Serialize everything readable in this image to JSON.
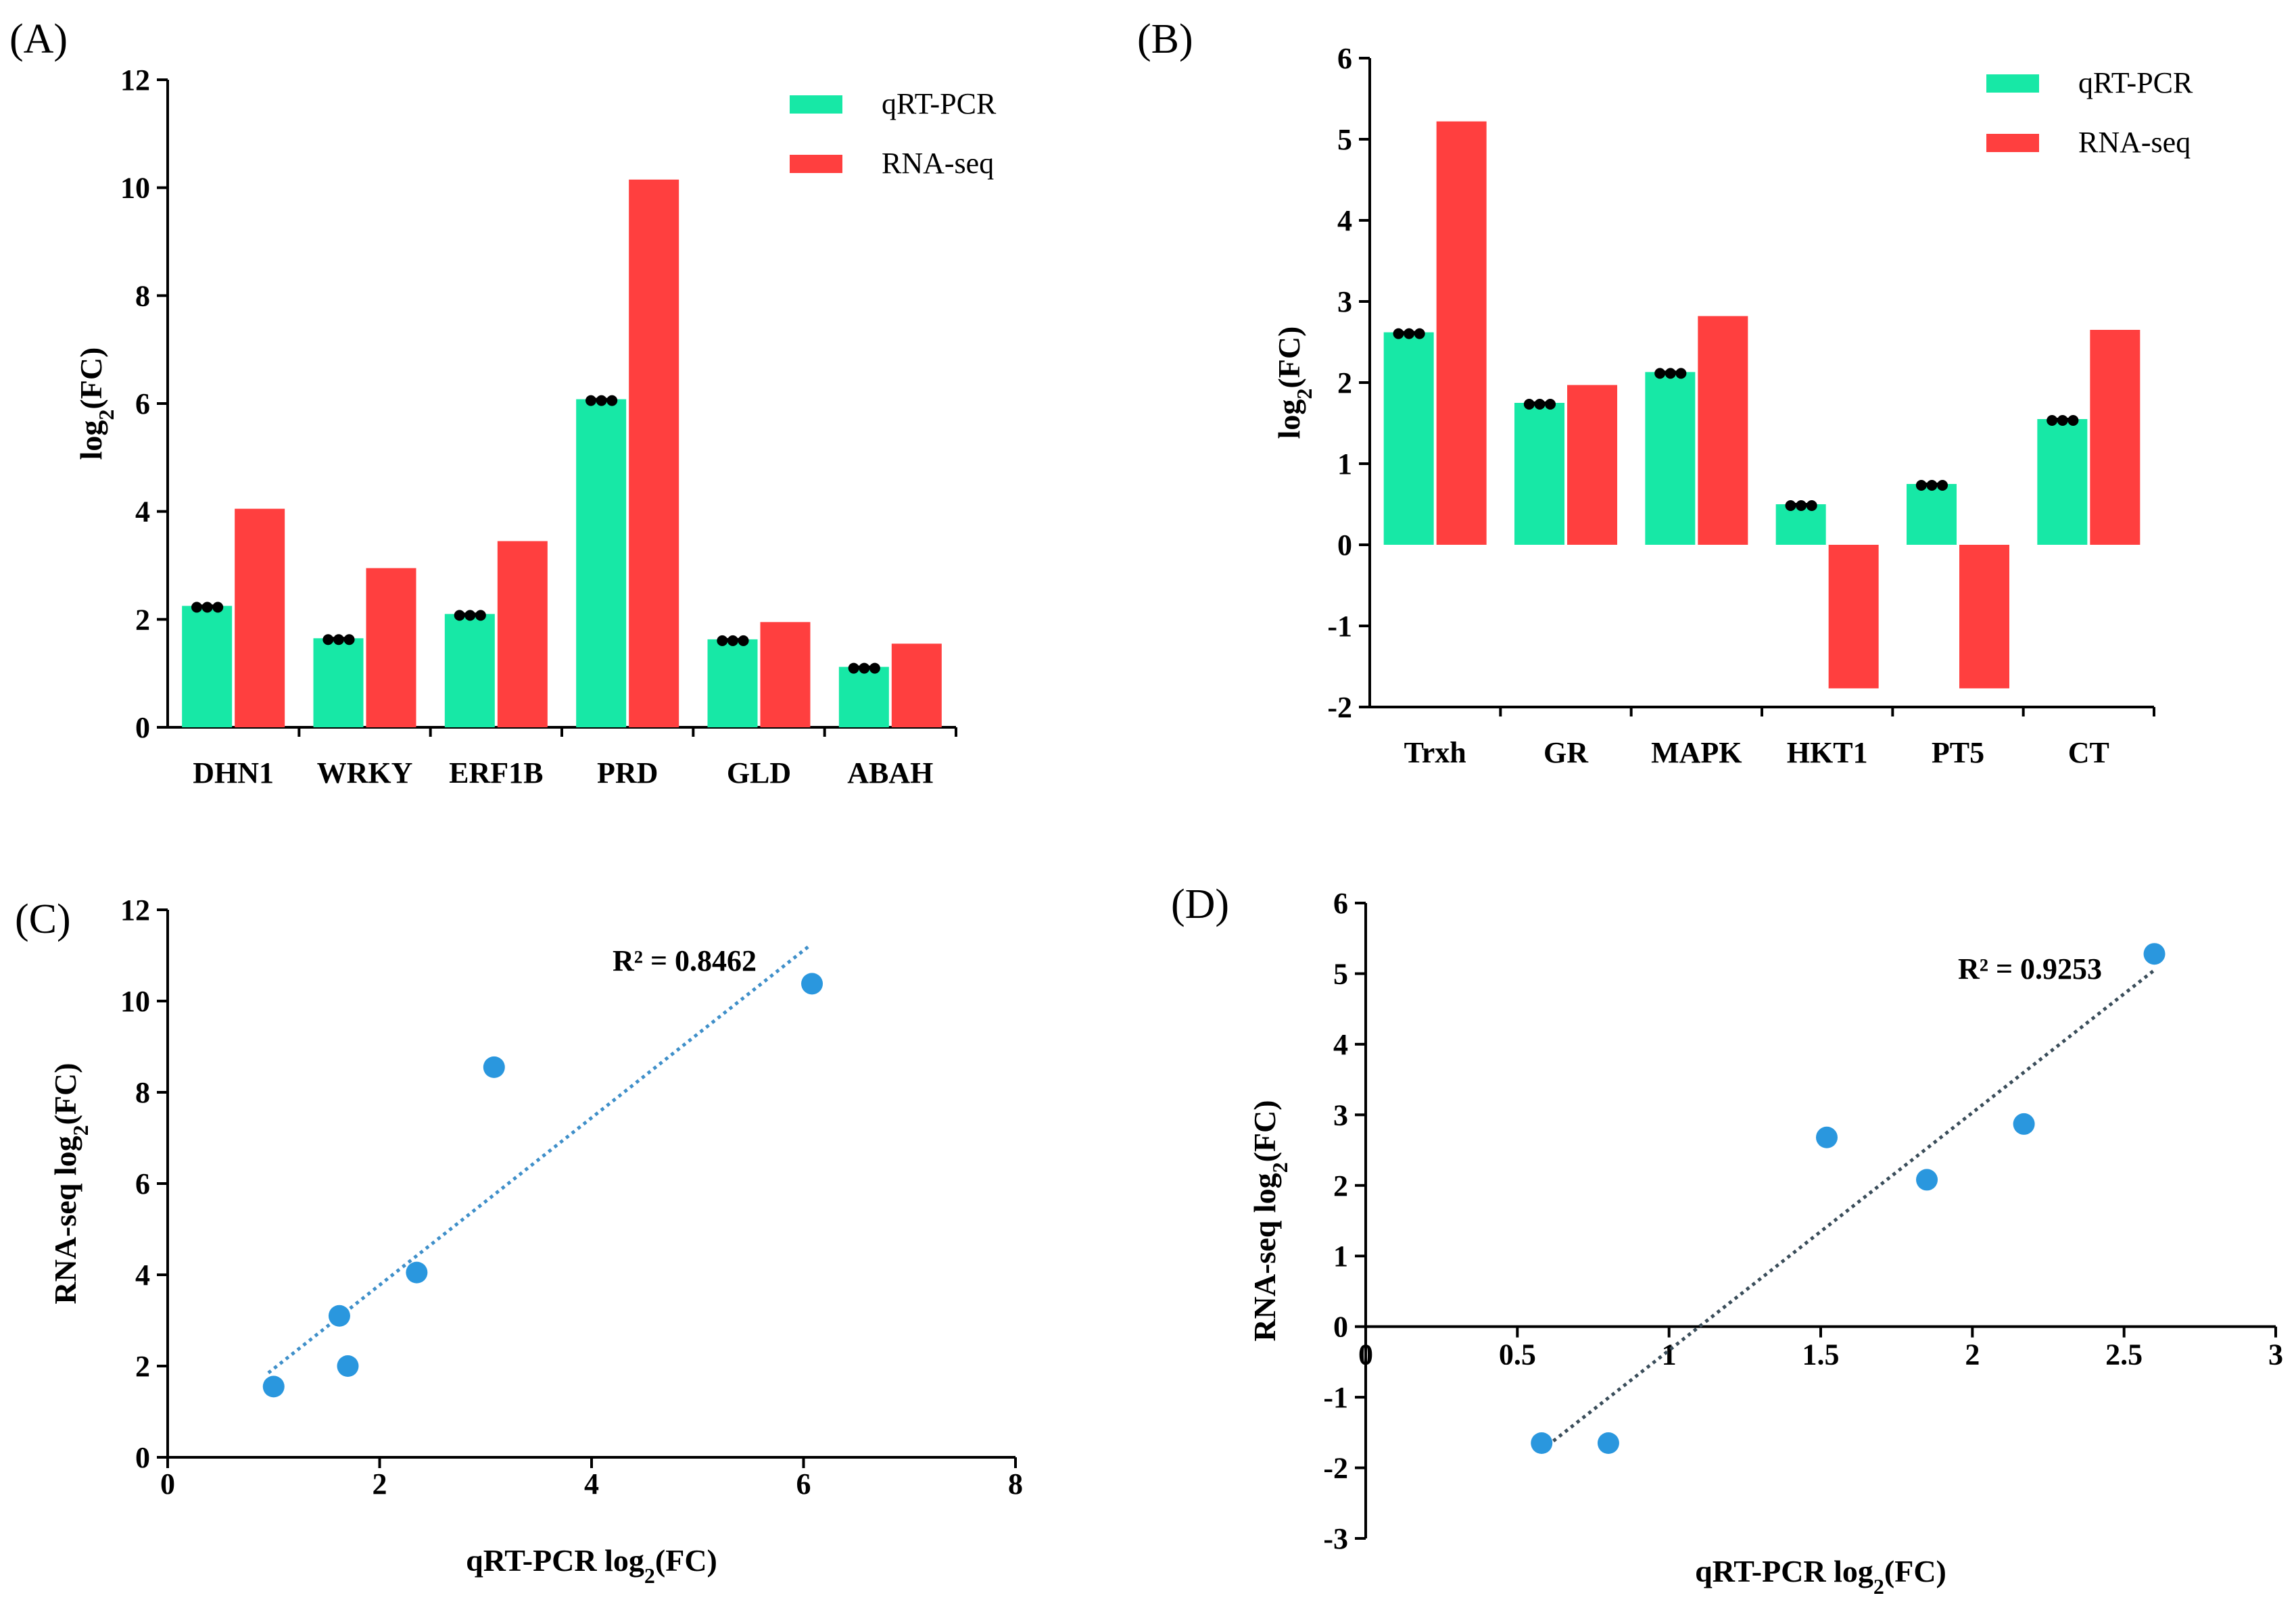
{
  "colors": {
    "qpcr": "#17e8a6",
    "rnaseq": "#ff3f3f",
    "scatter": "#2a97de",
    "trend_c": "#3f8fc9",
    "trend_d": "#3a4d5a",
    "axis": "#000000"
  },
  "chart_data": [
    {
      "id": "A",
      "panel_label": "(A)",
      "type": "bar",
      "ylabel_main": "log",
      "ylabel_sub": "2",
      "ylabel_tail": "(FC)",
      "ylim": [
        0,
        12
      ],
      "yticks": [
        0,
        2,
        4,
        6,
        8,
        10,
        12
      ],
      "categories": [
        "DHN1",
        "WRKY",
        "ERF1B",
        "PRD",
        "GLD",
        "ABAH"
      ],
      "series": [
        {
          "name": "qRT-PCR",
          "values": [
            2.25,
            1.65,
            2.1,
            6.08,
            1.63,
            1.12
          ]
        },
        {
          "name": "RNA-seq",
          "values": [
            4.05,
            2.95,
            3.45,
            10.15,
            1.95,
            1.55
          ]
        }
      ],
      "legend": "top-right"
    },
    {
      "id": "B",
      "panel_label": "(B)",
      "type": "bar",
      "ylabel_main": "log",
      "ylabel_sub": "2",
      "ylabel_tail": "(FC)",
      "ylim": [
        -2,
        6
      ],
      "yticks": [
        -2,
        -1,
        0,
        1,
        2,
        3,
        4,
        5,
        6
      ],
      "categories": [
        "Trxh",
        "GR",
        "MAPK",
        "HKT1",
        "PT5",
        "CT"
      ],
      "series": [
        {
          "name": "qRT-PCR",
          "values": [
            2.62,
            1.75,
            2.13,
            0.5,
            0.75,
            1.55
          ]
        },
        {
          "name": "RNA-seq",
          "values": [
            5.22,
            1.97,
            2.82,
            -1.77,
            -1.77,
            2.65
          ]
        }
      ],
      "legend": "top-right"
    },
    {
      "id": "C",
      "panel_label": "(C)",
      "type": "scatter",
      "xlabel_main": "qRT-PCR log",
      "xlabel_sub": "2",
      "xlabel_tail": "(FC)",
      "ylabel_main": "RNA-seq log",
      "ylabel_sub": "2",
      "ylabel_tail": "(FC)",
      "xlim": [
        0,
        8
      ],
      "ylim": [
        0,
        12
      ],
      "xticks": [
        0,
        2,
        4,
        6,
        8
      ],
      "yticks": [
        0,
        2,
        4,
        6,
        8,
        10,
        12
      ],
      "points": [
        [
          1.0,
          1.55
        ],
        [
          1.62,
          3.1
        ],
        [
          1.7,
          2.0
        ],
        [
          2.35,
          4.05
        ],
        [
          3.08,
          8.55
        ],
        [
          6.08,
          10.38
        ]
      ],
      "trendline": [
        [
          0.95,
          1.85
        ],
        [
          6.05,
          11.2
        ]
      ],
      "r2_text": "R² = 0.8462"
    },
    {
      "id": "D",
      "panel_label": "(D)",
      "type": "scatter",
      "xlabel_main": "qRT-PCR log",
      "xlabel_sub": "2",
      "xlabel_tail": "(FC)",
      "ylabel_main": "RNA-seq log",
      "ylabel_sub": "2",
      "ylabel_tail": "(FC)",
      "xlim": [
        0,
        3
      ],
      "ylim": [
        -3,
        6
      ],
      "xticks": [
        "0",
        "0.5",
        "1",
        "1.5",
        "2",
        "2.5",
        "3"
      ],
      "yticks": [
        -3,
        -2,
        -1,
        0,
        1,
        2,
        3,
        4,
        5,
        6
      ],
      "points": [
        [
          0.58,
          -1.65
        ],
        [
          0.8,
          -1.65
        ],
        [
          1.52,
          2.68
        ],
        [
          1.85,
          2.08
        ],
        [
          2.17,
          2.87
        ],
        [
          2.6,
          5.28
        ]
      ],
      "trendline": [
        [
          0.58,
          -1.75
        ],
        [
          2.6,
          5.05
        ]
      ],
      "r2_text": "R² = 0.9253"
    }
  ]
}
